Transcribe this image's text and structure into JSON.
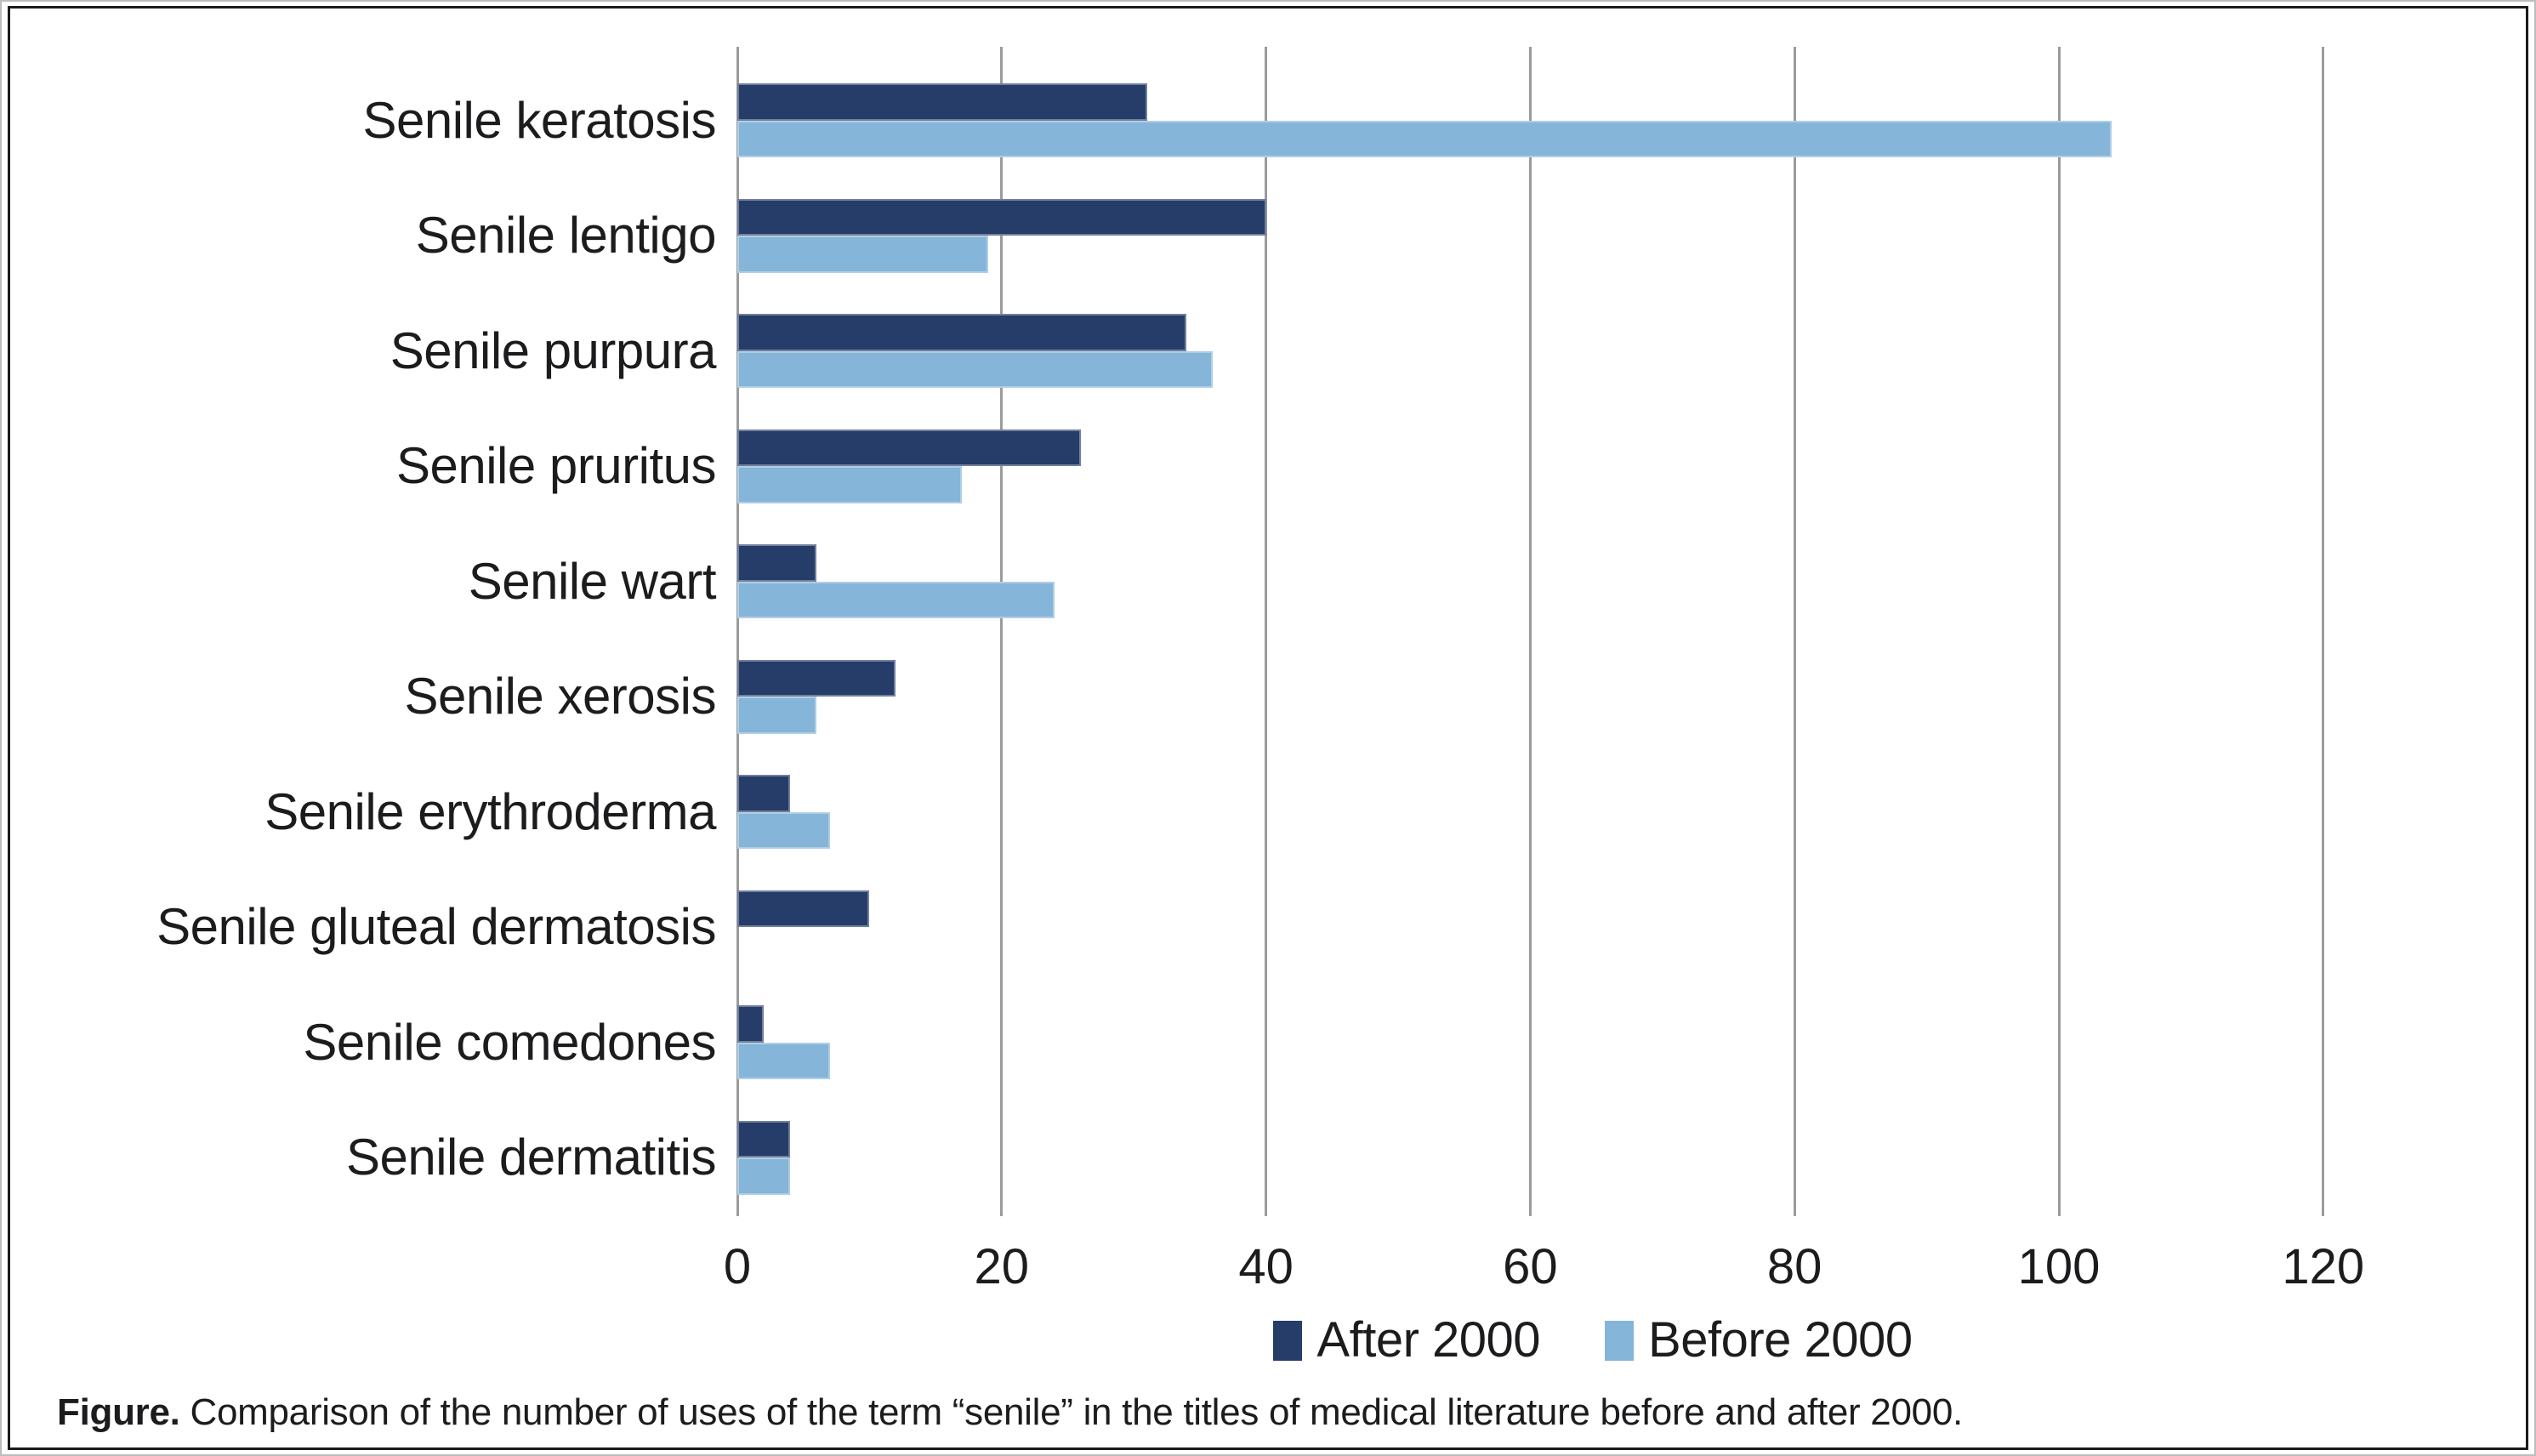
{
  "figure": {
    "caption_label": "Figure.",
    "caption_text": "Comparison of the number of uses of the term “senile” in the titles of medical literature before and after 2000."
  },
  "chart_data": {
    "type": "bar",
    "orientation": "horizontal",
    "title": "",
    "xlabel": "",
    "ylabel": "",
    "categories": [
      "Senile keratosis",
      "Senile lentigo",
      "Senile purpura",
      "Senile pruritus",
      "Senile wart",
      "Senile xerosis",
      "Senile erythroderma",
      "Senile gluteal dermatosis",
      "Senile comedones",
      "Senile dermatitis"
    ],
    "series": [
      {
        "name": "After 2000",
        "color": "#263C69",
        "values": [
          31,
          40,
          34,
          26,
          6,
          12,
          4,
          10,
          2,
          4
        ]
      },
      {
        "name": "Before 2000",
        "color": "#85B5D8",
        "values": [
          104,
          19,
          36,
          17,
          24,
          6,
          7,
          0,
          7,
          4
        ]
      }
    ],
    "x_axis": {
      "ticks": [
        0,
        20,
        40,
        60,
        80,
        100,
        120
      ],
      "min": 0,
      "max": 129
    },
    "grid": true,
    "gridline_color": "#9B9B9B",
    "legend_position": "bottom"
  }
}
